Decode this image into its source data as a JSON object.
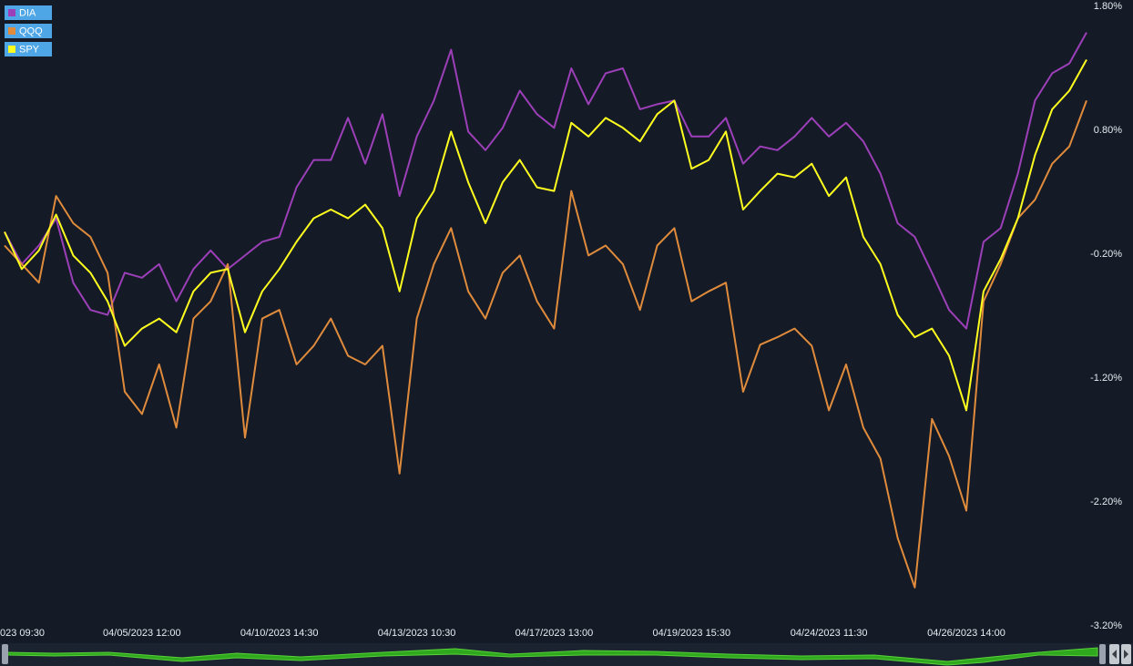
{
  "chart_data": {
    "type": "line",
    "categories": [
      "023 09:30",
      null,
      null,
      null,
      null,
      null,
      null,
      null,
      "04/05/2023 12:00",
      null,
      null,
      null,
      null,
      null,
      null,
      null,
      "04/10/2023 14:30",
      null,
      null,
      null,
      null,
      null,
      null,
      null,
      "04/13/2023 10:30",
      null,
      null,
      null,
      null,
      null,
      null,
      null,
      "04/17/2023 13:00",
      null,
      null,
      null,
      null,
      null,
      null,
      null,
      "04/19/2023 15:30",
      null,
      null,
      null,
      null,
      null,
      null,
      null,
      "04/24/2023 11:30",
      null,
      null,
      null,
      null,
      null,
      null,
      null,
      "04/26/2023 14:00",
      null,
      null,
      null,
      null,
      null,
      null,
      null
    ],
    "series": [
      {
        "name": "DIA",
        "color": "#9c3fb8",
        "values": [
          -0.02,
          -0.28,
          -0.13,
          0.09,
          -0.43,
          -0.65,
          -0.69,
          -0.35,
          -0.39,
          -0.28,
          -0.58,
          -0.32,
          -0.17,
          -0.32,
          -0.21,
          -0.1,
          -0.06,
          0.34,
          0.56,
          0.56,
          0.9,
          0.53,
          0.93,
          0.27,
          0.75,
          1.04,
          1.45,
          0.79,
          0.64,
          0.82,
          1.12,
          0.93,
          0.82,
          1.3,
          1.01,
          1.26,
          1.3,
          0.97,
          1.01,
          1.04,
          0.75,
          0.75,
          0.9,
          0.53,
          0.67,
          0.64,
          0.75,
          0.9,
          0.75,
          0.86,
          0.71,
          0.45,
          0.05,
          -0.06,
          -0.35,
          -0.65,
          -0.8,
          -0.1,
          0.01,
          0.45,
          1.04,
          1.26,
          1.34,
          1.59
        ]
      },
      {
        "name": "QQQ",
        "color": "#e08b3c",
        "values": [
          -0.13,
          -0.28,
          -0.43,
          0.27,
          0.05,
          -0.06,
          -0.35,
          -1.31,
          -1.49,
          -1.09,
          -1.6,
          -0.72,
          -0.58,
          -0.28,
          -1.68,
          -0.72,
          -0.65,
          -1.09,
          -0.94,
          -0.72,
          -1.02,
          -1.09,
          -0.94,
          -1.97,
          -0.72,
          -0.28,
          0.01,
          -0.5,
          -0.72,
          -0.35,
          -0.21,
          -0.58,
          -0.8,
          0.31,
          -0.21,
          -0.13,
          -0.28,
          -0.65,
          -0.13,
          0.01,
          -0.58,
          -0.5,
          -0.43,
          -1.31,
          -0.93,
          -0.87,
          -0.8,
          -0.94,
          -1.46,
          -1.09,
          -1.6,
          -1.85,
          -2.49,
          -2.89,
          -1.53,
          -1.83,
          -2.27,
          -0.58,
          -0.28,
          0.09,
          0.24,
          0.53,
          0.67,
          1.04
        ]
      },
      {
        "name": "SPY",
        "color": "#ffff1f",
        "values": [
          -0.02,
          -0.32,
          -0.17,
          0.12,
          -0.21,
          -0.35,
          -0.58,
          -0.94,
          -0.8,
          -0.72,
          -0.83,
          -0.5,
          -0.35,
          -0.32,
          -0.83,
          -0.5,
          -0.32,
          -0.1,
          0.09,
          0.16,
          0.09,
          0.2,
          0.01,
          -0.5,
          0.09,
          0.31,
          0.79,
          0.38,
          0.05,
          0.38,
          0.56,
          0.34,
          0.31,
          0.86,
          0.75,
          0.9,
          0.82,
          0.71,
          0.93,
          1.04,
          0.49,
          0.56,
          0.79,
          0.16,
          0.31,
          0.45,
          0.42,
          0.53,
          0.27,
          0.42,
          -0.06,
          -0.28,
          -0.69,
          -0.87,
          -0.8,
          -1.02,
          -1.46,
          -0.5,
          -0.24,
          0.09,
          0.6,
          0.97,
          1.12,
          1.37
        ]
      }
    ],
    "ylim": [
      -3.2,
      1.8
    ],
    "yticks": [
      {
        "value": 1.8,
        "label": "1.80%"
      },
      {
        "value": 0.8,
        "label": "0.80%"
      },
      {
        "value": -0.2,
        "label": "-0.20%"
      },
      {
        "value": -1.2,
        "label": "-1.20%"
      },
      {
        "value": -2.2,
        "label": "-2.20%"
      },
      {
        "value": -3.2,
        "label": "-3.20%"
      }
    ],
    "grid": false,
    "legend": "top-left"
  }
}
